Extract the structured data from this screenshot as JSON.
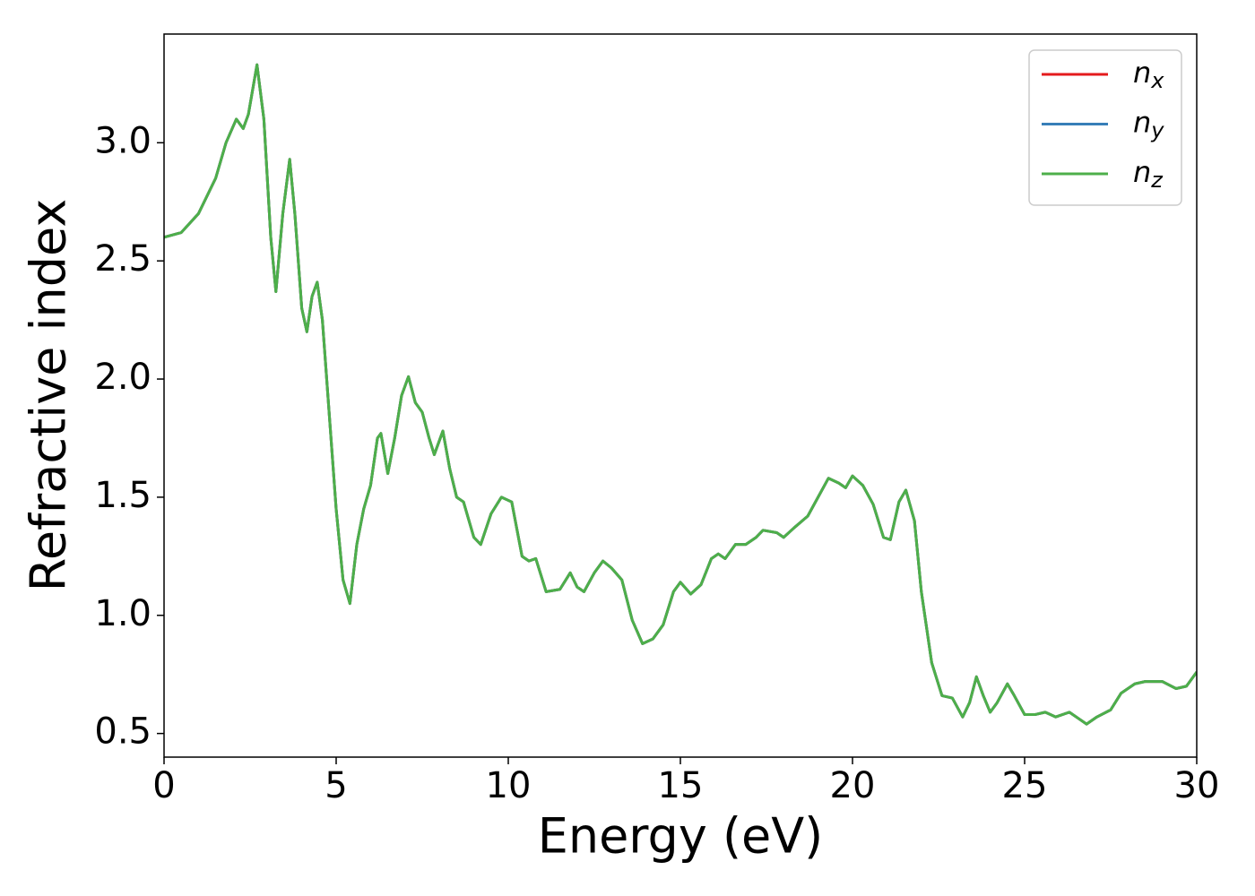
{
  "chart_data": {
    "type": "line",
    "xlabel": "Energy (eV)",
    "ylabel": "Refractive index",
    "x": [
      0,
      0.5,
      1.0,
      1.5,
      1.8,
      2.1,
      2.3,
      2.45,
      2.7,
      2.9,
      3.1,
      3.25,
      3.45,
      3.65,
      3.8,
      4.0,
      4.15,
      4.3,
      4.45,
      4.6,
      4.8,
      5.0,
      5.2,
      5.4,
      5.6,
      5.8,
      6.0,
      6.2,
      6.3,
      6.5,
      6.7,
      6.9,
      7.1,
      7.3,
      7.5,
      7.7,
      7.85,
      8.1,
      8.3,
      8.5,
      8.7,
      9.0,
      9.2,
      9.5,
      9.8,
      10.1,
      10.4,
      10.6,
      10.8,
      11.1,
      11.5,
      11.8,
      12.0,
      12.2,
      12.5,
      12.75,
      13.0,
      13.3,
      13.6,
      13.9,
      14.2,
      14.5,
      14.8,
      15.0,
      15.3,
      15.6,
      15.9,
      16.1,
      16.3,
      16.6,
      16.9,
      17.2,
      17.4,
      17.8,
      18.0,
      18.3,
      18.7,
      19.0,
      19.3,
      19.6,
      19.8,
      20.0,
      20.3,
      20.6,
      20.9,
      21.1,
      21.35,
      21.55,
      21.8,
      22.0,
      22.3,
      22.6,
      22.9,
      23.2,
      23.4,
      23.6,
      23.8,
      24.0,
      24.2,
      24.5,
      24.7,
      25.0,
      25.3,
      25.6,
      25.9,
      26.3,
      26.6,
      26.8,
      27.1,
      27.5,
      27.8,
      28.2,
      28.5,
      29.0,
      29.4,
      29.7,
      30.0
    ],
    "series": [
      {
        "name": "nx",
        "color": "#e41a1c",
        "values": [
          2.6,
          2.62,
          2.7,
          2.85,
          3.0,
          3.1,
          3.06,
          3.12,
          3.33,
          3.1,
          2.6,
          2.37,
          2.7,
          2.93,
          2.7,
          2.3,
          2.2,
          2.35,
          2.41,
          2.25,
          1.85,
          1.45,
          1.15,
          1.05,
          1.3,
          1.45,
          1.55,
          1.75,
          1.77,
          1.6,
          1.75,
          1.93,
          2.01,
          1.9,
          1.86,
          1.75,
          1.68,
          1.78,
          1.62,
          1.5,
          1.48,
          1.33,
          1.3,
          1.43,
          1.5,
          1.48,
          1.25,
          1.23,
          1.24,
          1.1,
          1.11,
          1.18,
          1.12,
          1.1,
          1.18,
          1.23,
          1.2,
          1.15,
          0.98,
          0.88,
          0.9,
          0.96,
          1.1,
          1.14,
          1.09,
          1.13,
          1.24,
          1.26,
          1.24,
          1.3,
          1.3,
          1.33,
          1.36,
          1.35,
          1.33,
          1.37,
          1.42,
          1.5,
          1.58,
          1.56,
          1.54,
          1.59,
          1.55,
          1.47,
          1.33,
          1.32,
          1.48,
          1.53,
          1.4,
          1.1,
          0.8,
          0.66,
          0.65,
          0.57,
          0.63,
          0.74,
          0.66,
          0.59,
          0.63,
          0.71,
          0.66,
          0.58,
          0.58,
          0.59,
          0.57,
          0.59,
          0.56,
          0.54,
          0.57,
          0.6,
          0.67,
          0.71,
          0.72,
          0.72,
          0.69,
          0.7,
          0.76
        ]
      },
      {
        "name": "ny",
        "color": "#377eb8",
        "values": [
          2.6,
          2.62,
          2.7,
          2.85,
          3.0,
          3.1,
          3.06,
          3.12,
          3.33,
          3.1,
          2.6,
          2.37,
          2.7,
          2.93,
          2.7,
          2.3,
          2.2,
          2.35,
          2.41,
          2.25,
          1.85,
          1.45,
          1.15,
          1.05,
          1.3,
          1.45,
          1.55,
          1.75,
          1.77,
          1.6,
          1.75,
          1.93,
          2.01,
          1.9,
          1.86,
          1.75,
          1.68,
          1.78,
          1.62,
          1.5,
          1.48,
          1.33,
          1.3,
          1.43,
          1.5,
          1.48,
          1.25,
          1.23,
          1.24,
          1.1,
          1.11,
          1.18,
          1.12,
          1.1,
          1.18,
          1.23,
          1.2,
          1.15,
          0.98,
          0.88,
          0.9,
          0.96,
          1.1,
          1.14,
          1.09,
          1.13,
          1.24,
          1.26,
          1.24,
          1.3,
          1.3,
          1.33,
          1.36,
          1.35,
          1.33,
          1.37,
          1.42,
          1.5,
          1.58,
          1.56,
          1.54,
          1.59,
          1.55,
          1.47,
          1.33,
          1.32,
          1.48,
          1.53,
          1.4,
          1.1,
          0.8,
          0.66,
          0.65,
          0.57,
          0.63,
          0.74,
          0.66,
          0.59,
          0.63,
          0.71,
          0.66,
          0.58,
          0.58,
          0.59,
          0.57,
          0.59,
          0.56,
          0.54,
          0.57,
          0.6,
          0.67,
          0.71,
          0.72,
          0.72,
          0.69,
          0.7,
          0.76
        ]
      },
      {
        "name": "nz",
        "color": "#4daf4a",
        "values": [
          2.6,
          2.62,
          2.7,
          2.85,
          3.0,
          3.1,
          3.06,
          3.12,
          3.33,
          3.1,
          2.6,
          2.37,
          2.7,
          2.93,
          2.7,
          2.3,
          2.2,
          2.35,
          2.41,
          2.25,
          1.85,
          1.45,
          1.15,
          1.05,
          1.3,
          1.45,
          1.55,
          1.75,
          1.77,
          1.6,
          1.75,
          1.93,
          2.01,
          1.9,
          1.86,
          1.75,
          1.68,
          1.78,
          1.62,
          1.5,
          1.48,
          1.33,
          1.3,
          1.43,
          1.5,
          1.48,
          1.25,
          1.23,
          1.24,
          1.1,
          1.11,
          1.18,
          1.12,
          1.1,
          1.18,
          1.23,
          1.2,
          1.15,
          0.98,
          0.88,
          0.9,
          0.96,
          1.1,
          1.14,
          1.09,
          1.13,
          1.24,
          1.26,
          1.24,
          1.3,
          1.3,
          1.33,
          1.36,
          1.35,
          1.33,
          1.37,
          1.42,
          1.5,
          1.58,
          1.56,
          1.54,
          1.59,
          1.55,
          1.47,
          1.33,
          1.32,
          1.48,
          1.53,
          1.4,
          1.1,
          0.8,
          0.66,
          0.65,
          0.57,
          0.63,
          0.74,
          0.66,
          0.59,
          0.63,
          0.71,
          0.66,
          0.58,
          0.58,
          0.59,
          0.57,
          0.59,
          0.56,
          0.54,
          0.57,
          0.6,
          0.67,
          0.71,
          0.72,
          0.72,
          0.69,
          0.7,
          0.76
        ]
      }
    ],
    "xlim": [
      0,
      30
    ],
    "xticks": [
      0,
      5,
      10,
      15,
      20,
      25,
      30
    ],
    "ylim": [
      0.4,
      3.46
    ],
    "yticks": [
      0.5,
      {
        "value": 1,
        "label": "1.0"
      },
      1.5,
      {
        "value": 2,
        "label": "2.0"
      },
      2.5,
      {
        "value": 3,
        "label": "3.0"
      }
    ],
    "grid": false,
    "legend": "upper right"
  }
}
